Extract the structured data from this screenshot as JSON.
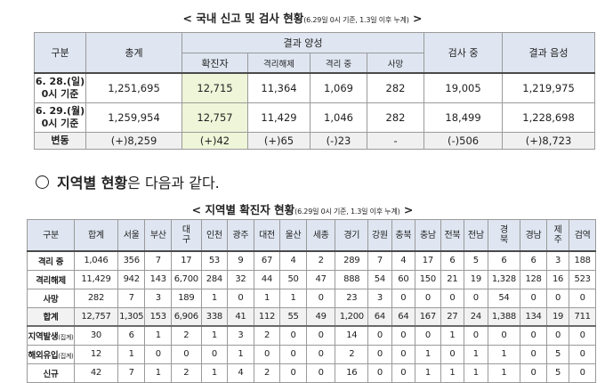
{
  "title1": {
    "main": "< 국내 신고 및 검사 현황",
    "sub": "(6.29일 0시 기준, 1.3일 이후 누계)",
    "end": " >"
  },
  "table1": {
    "headers": {
      "category": "구분",
      "total": "총계",
      "positive_group": "결과 양성",
      "confirmed": "확진자",
      "released": "격리해제",
      "isolating": "격리 중",
      "deaths": "사망",
      "testing": "검사 중",
      "negative": "결과 음성"
    },
    "rows": [
      {
        "label": "6. 28.(일) 0시 기준",
        "total": "1,251,695",
        "confirmed": "12,715",
        "released": "11,364",
        "isolating": "1,069",
        "deaths": "282",
        "testing": "19,005",
        "negative": "1,219,975"
      },
      {
        "label": "6. 29.(월) 0시 기준",
        "total": "1,259,954",
        "confirmed": "12,757",
        "released": "11,429",
        "isolating": "1,046",
        "deaths": "282",
        "testing": "18,499",
        "negative": "1,228,698"
      },
      {
        "label": "변동",
        "total": "(+)8,259",
        "confirmed": "(+)42",
        "released": "(+)65",
        "isolating": "(-)23",
        "deaths": "-",
        "testing": "(-)506",
        "negative": "(+)8,723"
      }
    ]
  },
  "section": {
    "prefix": "지역별 현황",
    "rest": "은 다음과 같다."
  },
  "title2": {
    "main": "< 지역별 확진자 현황",
    "sub": "(6.29일 0시 기준, 1.3일 이후 누계)",
    "end": " >"
  },
  "table2": {
    "headers": [
      "구분",
      "합계",
      "서울",
      "부산",
      "대\n구",
      "인천",
      "광주",
      "대전",
      "울산",
      "세종",
      "경기",
      "강원",
      "충북",
      "충남",
      "전북",
      "전남",
      "경\n북",
      "경남",
      "제\n주",
      "검역"
    ],
    "rows": [
      {
        "label": "격리 중",
        "label_sub": "",
        "values": [
          "1,046",
          "356",
          "7",
          "17",
          "53",
          "9",
          "67",
          "4",
          "2",
          "289",
          "7",
          "4",
          "17",
          "6",
          "5",
          "6",
          "6",
          "3",
          "188"
        ]
      },
      {
        "label": "격리해제",
        "label_sub": "",
        "values": [
          "11,429",
          "942",
          "143",
          "6,700",
          "284",
          "32",
          "44",
          "50",
          "47",
          "888",
          "54",
          "60",
          "150",
          "21",
          "19",
          "1,328",
          "128",
          "16",
          "523"
        ]
      },
      {
        "label": "사망",
        "label_sub": "",
        "values": [
          "282",
          "7",
          "3",
          "189",
          "1",
          "0",
          "1",
          "1",
          "0",
          "23",
          "3",
          "0",
          "0",
          "0",
          "0",
          "54",
          "0",
          "0",
          "0"
        ]
      },
      {
        "label": "합계",
        "label_sub": "",
        "values": [
          "12,757",
          "1,305",
          "153",
          "6,906",
          "338",
          "41",
          "112",
          "55",
          "49",
          "1,200",
          "64",
          "64",
          "167",
          "27",
          "24",
          "1,388",
          "134",
          "19",
          "711"
        ]
      },
      {
        "label": "지역발생",
        "label_sub": "(집계)",
        "values": [
          "30",
          "6",
          "1",
          "2",
          "1",
          "3",
          "2",
          "0",
          "0",
          "14",
          "0",
          "0",
          "0",
          "1",
          "0",
          "0",
          "0",
          "0",
          "0"
        ]
      },
      {
        "label": "해외유입",
        "label_sub": "(집계)",
        "values": [
          "12",
          "1",
          "0",
          "0",
          "0",
          "1",
          "0",
          "0",
          "0",
          "2",
          "0",
          "0",
          "1",
          "0",
          "1",
          "1",
          "0",
          "5",
          "0"
        ]
      },
      {
        "label": "신규",
        "label_sub": "",
        "values": [
          "42",
          "7",
          "1",
          "2",
          "1",
          "4",
          "2",
          "0",
          "0",
          "16",
          "0",
          "0",
          "1",
          "1",
          "1",
          "1",
          "0",
          "5",
          "0"
        ]
      }
    ]
  }
}
